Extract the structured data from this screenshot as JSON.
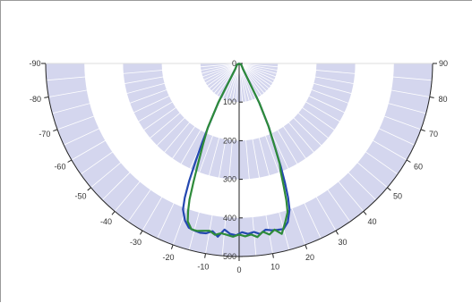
{
  "chart_data": {
    "type": "polar-line",
    "title": "",
    "range": [
      0,
      500
    ],
    "radial_ticks": [
      "0",
      "100",
      "200",
      "300",
      "400",
      "500"
    ],
    "angle_ticks": [
      "-90",
      "-80",
      "-70",
      "-60",
      "-50",
      "-40",
      "-30",
      "-20",
      "-10",
      "0",
      "10",
      "20",
      "30",
      "40",
      "50",
      "60",
      "70",
      "80",
      "90"
    ],
    "angle_tick_values": [
      -90,
      -80,
      -70,
      -60,
      -50,
      -40,
      -30,
      -20,
      -10,
      0,
      10,
      20,
      30,
      40,
      50,
      60,
      70,
      80,
      90
    ],
    "band_color": "#d4d6ee",
    "grid_color": "#ffffff",
    "series": [
      {
        "color": "#2448b0",
        "points": [
          [
            -90,
            0
          ],
          [
            -60,
            6
          ],
          [
            -45,
            10
          ],
          [
            -35,
            17
          ],
          [
            -28,
            115
          ],
          [
            -26,
            180
          ],
          [
            -25,
            225
          ],
          [
            -24,
            275
          ],
          [
            -23,
            330
          ],
          [
            -22,
            375
          ],
          [
            -21,
            405
          ],
          [
            -19,
            430
          ],
          [
            -17,
            445
          ],
          [
            -15,
            448
          ],
          [
            -13,
            450
          ],
          [
            -11,
            448
          ],
          [
            -9,
            440
          ],
          [
            -7,
            452
          ],
          [
            -5,
            432
          ],
          [
            -3,
            442
          ],
          [
            -1,
            445
          ],
          [
            1,
            437
          ],
          [
            3,
            442
          ],
          [
            5,
            438
          ],
          [
            7,
            445
          ],
          [
            9,
            436
          ],
          [
            11,
            440
          ],
          [
            13,
            442
          ],
          [
            15,
            444
          ],
          [
            17,
            430
          ],
          [
            19,
            400
          ],
          [
            20,
            370
          ],
          [
            21,
            330
          ],
          [
            22,
            287
          ],
          [
            23,
            240
          ],
          [
            25,
            180
          ],
          [
            27,
            115
          ],
          [
            35,
            17
          ],
          [
            45,
            10
          ],
          [
            60,
            6
          ],
          [
            90,
            0
          ]
        ]
      },
      {
        "color": "#2e8b3a",
        "points": [
          [
            -90,
            0
          ],
          [
            -60,
            6
          ],
          [
            -45,
            10
          ],
          [
            -35,
            17
          ],
          [
            -28,
            115
          ],
          [
            -26,
            185
          ],
          [
            -24,
            230
          ],
          [
            -22,
            290
          ],
          [
            -21,
            330
          ],
          [
            -20,
            375
          ],
          [
            -19,
            405
          ],
          [
            -18,
            430
          ],
          [
            -16,
            447
          ],
          [
            -14,
            447
          ],
          [
            -12,
            443
          ],
          [
            -10,
            440
          ],
          [
            -8,
            448
          ],
          [
            -6,
            442
          ],
          [
            -4,
            445
          ],
          [
            -2,
            449
          ],
          [
            0,
            443
          ],
          [
            2,
            448
          ],
          [
            4,
            444
          ],
          [
            6,
            452
          ],
          [
            8,
            440
          ],
          [
            10,
            450
          ],
          [
            12,
            440
          ],
          [
            14,
            455
          ],
          [
            16,
            430
          ],
          [
            18,
            405
          ],
          [
            19,
            375
          ],
          [
            20,
            335
          ],
          [
            21,
            300
          ],
          [
            22,
            280
          ],
          [
            23,
            240
          ],
          [
            25,
            180
          ],
          [
            27,
            115
          ],
          [
            35,
            17
          ],
          [
            45,
            10
          ],
          [
            60,
            6
          ],
          [
            90,
            0
          ]
        ]
      }
    ]
  }
}
